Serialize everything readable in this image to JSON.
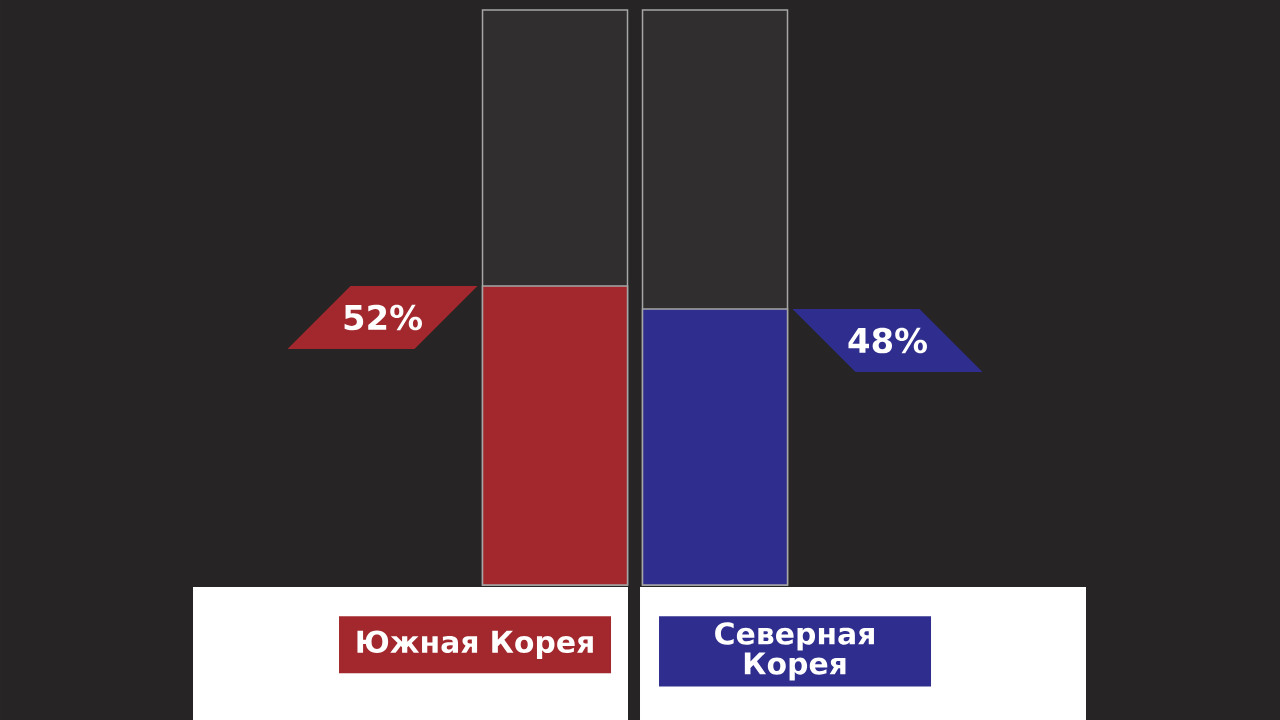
{
  "chart_data": {
    "type": "bar",
    "categories": [
      "Южная Корея",
      "Северная Корея"
    ],
    "values": [
      52,
      48
    ],
    "colors": [
      "#a3282d",
      "#2f2e8e"
    ],
    "value_labels": [
      "52%",
      "48%"
    ],
    "ylim": [
      0,
      100
    ]
  }
}
